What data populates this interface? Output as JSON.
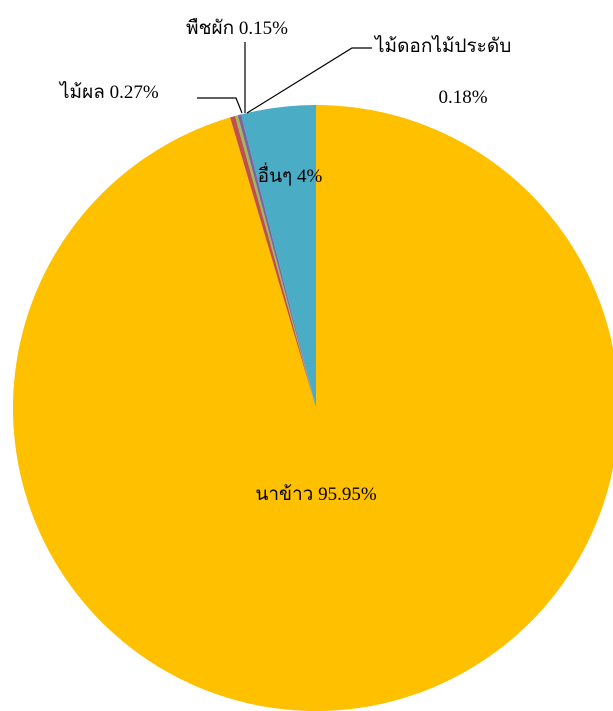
{
  "chart_data": {
    "type": "pie",
    "slices": [
      {
        "label": "นาข้าว",
        "value": 95.95,
        "display": "นาข้าว  95.95%",
        "color": "#FFC000"
      },
      {
        "label": "ไม้ผล",
        "value": 0.27,
        "display": "ไม้ผล 0.27%",
        "color": "#C0504D"
      },
      {
        "label": "พืชผัก",
        "value": 0.15,
        "display": "พืชผัก 0.15%",
        "color": "#9BBB59"
      },
      {
        "label": "ไม้ดอกไม้ประดับ",
        "value": 0.18,
        "display_line1": "ไม้ดอกไม้ประดับ",
        "display_line2": "0.18%",
        "color": "#8064A2"
      },
      {
        "label": "อื่นๆ",
        "value": 4,
        "display": "อื่นๆ 4%",
        "color": "#4BACC6"
      }
    ]
  }
}
